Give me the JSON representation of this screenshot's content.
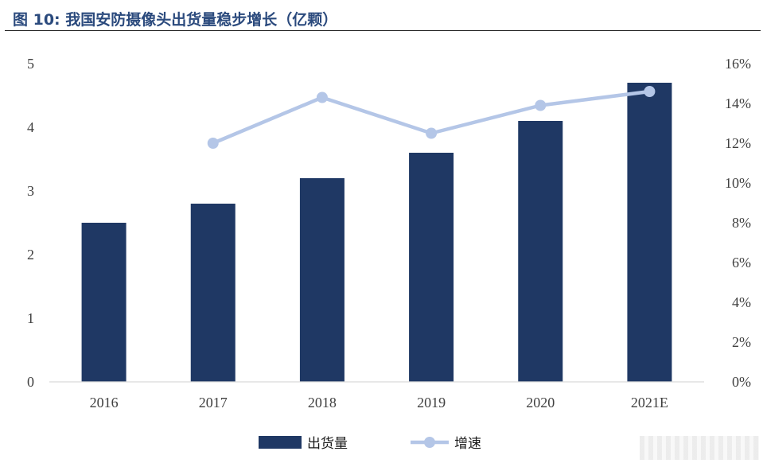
{
  "title": "图 10:  我国安防摄像头出货量稳步增长（亿颗）",
  "chart_data": {
    "type": "bar",
    "categories": [
      "2016",
      "2017",
      "2018",
      "2019",
      "2020",
      "2021E"
    ],
    "series": [
      {
        "name": "出货量",
        "type": "bar",
        "axis": "left",
        "color": "#1f3864",
        "values": [
          2.5,
          2.8,
          3.2,
          3.6,
          4.1,
          4.7
        ]
      },
      {
        "name": "增速",
        "type": "line",
        "axis": "right",
        "color": "#b4c6e7",
        "values": [
          null,
          0.12,
          0.143,
          0.125,
          0.139,
          0.146
        ]
      }
    ],
    "y_left": {
      "ylim": [
        0,
        5
      ],
      "ticks": [
        "0",
        "1",
        "2",
        "3",
        "4",
        "5"
      ]
    },
    "y_right": {
      "ylim": [
        0,
        0.16
      ],
      "ticks": [
        "0%",
        "2%",
        "4%",
        "6%",
        "8%",
        "10%",
        "12%",
        "14%",
        "16%"
      ]
    },
    "grid": false,
    "legend": {
      "placement": "bottom",
      "entries": [
        "出货量",
        "增速"
      ]
    }
  }
}
